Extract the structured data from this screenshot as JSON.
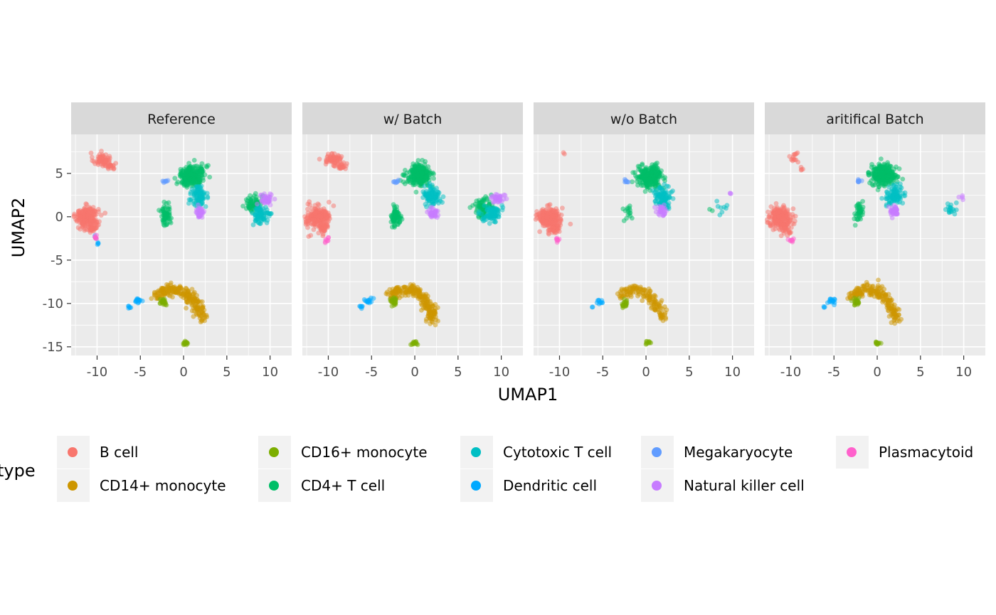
{
  "chart_data": {
    "type": "scatter",
    "xlabel": "UMAP1",
    "ylabel": "UMAP2",
    "xlim": [
      -13,
      12.5
    ],
    "ylim": [
      -16,
      9.5
    ],
    "x_ticks": [
      -10,
      -5,
      0,
      5,
      10
    ],
    "y_ticks": [
      -15,
      -10,
      -5,
      0,
      5
    ],
    "x_tick_labels": [
      "-10",
      "-5",
      "0",
      "5",
      "10"
    ],
    "y_tick_labels": [
      "-15",
      "-10",
      "-5",
      "0",
      "5"
    ],
    "grid": true,
    "legend_position": "bottom",
    "legend_title": "type",
    "facets": [
      "Reference",
      "w/ Batch",
      "w/o Batch",
      "aritifical Batch"
    ],
    "categories": [
      {
        "name": "B cell",
        "color": "#F8766D"
      },
      {
        "name": "CD14+ monocyte",
        "color": "#CD9600"
      },
      {
        "name": "CD16+ monocyte",
        "color": "#7CAE00"
      },
      {
        "name": "CD4+ T cell",
        "color": "#00BE67"
      },
      {
        "name": "Cytotoxic T cell",
        "color": "#00BFC4"
      },
      {
        "name": "Dendritic cell",
        "color": "#00A9FF"
      },
      {
        "name": "Megakaryocyte",
        "color": "#619CFF"
      },
      {
        "name": "Natural killer cell",
        "color": "#C77CFF"
      },
      {
        "name": "Plasmacytoid",
        "color": "#FF61CC"
      }
    ],
    "series": [
      {
        "name": "Reference",
        "clusters": [
          {
            "type": "B cell",
            "cx": -9.5,
            "cy": 6.6,
            "rx": 0.9,
            "ry": 0.7,
            "n": 60
          },
          {
            "type": "B cell",
            "cx": -8.4,
            "cy": 5.8,
            "rx": 0.5,
            "ry": 0.4,
            "n": 20
          },
          {
            "type": "B cell",
            "cx": -11.2,
            "cy": 0.0,
            "rx": 1.2,
            "ry": 1.0,
            "n": 220
          },
          {
            "type": "B cell",
            "cx": -10.6,
            "cy": -1.3,
            "rx": 0.6,
            "ry": 0.6,
            "n": 40
          },
          {
            "type": "Plasmacytoid",
            "cx": -10.2,
            "cy": -2.4,
            "rx": 0.3,
            "ry": 0.3,
            "n": 6
          },
          {
            "type": "Megakaryocyte",
            "cx": -10.3,
            "cy": -2.3,
            "rx": 0.2,
            "ry": 0.2,
            "n": 3
          },
          {
            "type": "Dendritic cell",
            "cx": -9.9,
            "cy": -3.1,
            "rx": 0.15,
            "ry": 0.2,
            "n": 4
          },
          {
            "type": "CD4+ T cell",
            "cx": 1.0,
            "cy": 4.8,
            "rx": 1.3,
            "ry": 1.1,
            "n": 250
          },
          {
            "type": "CD4+ T cell",
            "cx": -2.1,
            "cy": 0.1,
            "rx": 0.5,
            "ry": 1.0,
            "n": 70
          },
          {
            "type": "Megakaryocyte",
            "cx": -2.2,
            "cy": 4.1,
            "rx": 0.3,
            "ry": 0.15,
            "n": 8
          },
          {
            "type": "Cytotoxic T cell",
            "cx": 1.8,
            "cy": 2.4,
            "rx": 0.8,
            "ry": 1.0,
            "n": 90
          },
          {
            "type": "Natural killer cell",
            "cx": 1.9,
            "cy": 0.5,
            "rx": 0.4,
            "ry": 0.6,
            "n": 40
          },
          {
            "type": "CD4+ T cell",
            "cx": 8.0,
            "cy": 1.4,
            "rx": 0.9,
            "ry": 0.9,
            "n": 70
          },
          {
            "type": "Natural killer cell",
            "cx": 9.5,
            "cy": 2.0,
            "rx": 0.6,
            "ry": 0.6,
            "n": 40
          },
          {
            "type": "Cytotoxic T cell",
            "cx": 9.0,
            "cy": 0.3,
            "rx": 0.8,
            "ry": 0.9,
            "n": 80
          },
          {
            "type": "Dendritic cell",
            "cx": -5.3,
            "cy": -9.7,
            "rx": 0.5,
            "ry": 0.3,
            "n": 15
          },
          {
            "type": "Dendritic cell",
            "cx": -6.2,
            "cy": -10.4,
            "rx": 0.2,
            "ry": 0.15,
            "n": 6
          },
          {
            "type": "CD16+ monocyte",
            "cx": -2.4,
            "cy": -9.8,
            "rx": 0.3,
            "ry": 0.4,
            "n": 25
          },
          {
            "type": "CD16+ monocyte",
            "cx": 0.2,
            "cy": -14.6,
            "rx": 0.3,
            "ry": 0.2,
            "n": 15
          }
        ],
        "arc": {
          "type": "CD14+ monocyte",
          "points": [
            [
              -3.0,
              -9.2
            ],
            [
              -2.2,
              -8.5
            ],
            [
              -1.0,
              -8.3
            ],
            [
              0.3,
              -8.7
            ],
            [
              1.0,
              -9.6
            ],
            [
              1.6,
              -10.5
            ],
            [
              2.0,
              -11.4
            ],
            [
              2.1,
              -12.0
            ]
          ],
          "n": 230,
          "spread": 0.35
        }
      },
      {
        "name": "w/ Batch",
        "clusters": [
          {
            "type": "B cell",
            "cx": -9.5,
            "cy": 6.6,
            "rx": 0.9,
            "ry": 0.7,
            "n": 60
          },
          {
            "type": "B cell",
            "cx": -8.4,
            "cy": 5.8,
            "rx": 0.5,
            "ry": 0.4,
            "n": 20
          },
          {
            "type": "B cell",
            "cx": -11.2,
            "cy": 0.0,
            "rx": 1.2,
            "ry": 1.0,
            "n": 220
          },
          {
            "type": "B cell",
            "cx": -10.6,
            "cy": -1.3,
            "rx": 0.6,
            "ry": 0.6,
            "n": 40
          },
          {
            "type": "Plasmacytoid",
            "cx": -10.2,
            "cy": -2.6,
            "rx": 0.3,
            "ry": 0.4,
            "n": 8
          },
          {
            "type": "CD4+ T cell",
            "cx": 0.5,
            "cy": 4.8,
            "rx": 1.3,
            "ry": 1.1,
            "n": 250
          },
          {
            "type": "CD4+ T cell",
            "cx": -2.1,
            "cy": 0.0,
            "rx": 0.5,
            "ry": 1.0,
            "n": 70
          },
          {
            "type": "Megakaryocyte",
            "cx": -2.2,
            "cy": 4.1,
            "rx": 0.3,
            "ry": 0.15,
            "n": 8
          },
          {
            "type": "Cytotoxic T cell",
            "cx": 2.0,
            "cy": 2.5,
            "rx": 0.9,
            "ry": 1.0,
            "n": 100
          },
          {
            "type": "Natural killer cell",
            "cx": 2.0,
            "cy": 0.4,
            "rx": 0.5,
            "ry": 0.6,
            "n": 40
          },
          {
            "type": "CD4+ T cell",
            "cx": 7.8,
            "cy": 1.0,
            "rx": 1.0,
            "ry": 1.0,
            "n": 80
          },
          {
            "type": "Natural killer cell",
            "cx": 9.6,
            "cy": 2.2,
            "rx": 0.7,
            "ry": 0.5,
            "n": 40
          },
          {
            "type": "Cytotoxic T cell",
            "cx": 9.0,
            "cy": 0.3,
            "rx": 0.9,
            "ry": 0.9,
            "n": 80
          },
          {
            "type": "Dendritic cell",
            "cx": -5.3,
            "cy": -9.7,
            "rx": 0.5,
            "ry": 0.3,
            "n": 15
          },
          {
            "type": "Dendritic cell",
            "cx": -6.2,
            "cy": -10.4,
            "rx": 0.2,
            "ry": 0.15,
            "n": 6
          },
          {
            "type": "CD16+ monocyte",
            "cx": -2.4,
            "cy": -9.8,
            "rx": 0.3,
            "ry": 0.4,
            "n": 25
          },
          {
            "type": "CD16+ monocyte",
            "cx": 0.0,
            "cy": -14.6,
            "rx": 0.4,
            "ry": 0.2,
            "n": 15
          }
        ],
        "arc": {
          "type": "CD14+ monocyte",
          "points": [
            [
              -3.0,
              -9.2
            ],
            [
              -2.2,
              -8.5
            ],
            [
              -1.0,
              -8.3
            ],
            [
              0.3,
              -8.7
            ],
            [
              1.0,
              -9.6
            ],
            [
              1.6,
              -10.5
            ],
            [
              2.0,
              -11.4
            ],
            [
              2.1,
              -12.0
            ]
          ],
          "n": 230,
          "spread": 0.35
        }
      },
      {
        "name": "w/o Batch",
        "clusters": [
          {
            "type": "B cell",
            "cx": -9.5,
            "cy": 7.3,
            "rx": 0.15,
            "ry": 0.15,
            "n": 2
          },
          {
            "type": "B cell",
            "cx": -11.2,
            "cy": -0.1,
            "rx": 1.2,
            "ry": 1.0,
            "n": 220
          },
          {
            "type": "B cell",
            "cx": -10.6,
            "cy": -1.4,
            "rx": 0.6,
            "ry": 0.6,
            "n": 40
          },
          {
            "type": "Plasmacytoid",
            "cx": -10.3,
            "cy": -2.6,
            "rx": 0.3,
            "ry": 0.4,
            "n": 8
          },
          {
            "type": "CD4+ T cell",
            "cx": 0.5,
            "cy": 4.6,
            "rx": 1.3,
            "ry": 1.1,
            "n": 250
          },
          {
            "type": "CD4+ T cell",
            "cx": -2.1,
            "cy": 0.6,
            "rx": 0.6,
            "ry": 0.9,
            "n": 15
          },
          {
            "type": "Megakaryocyte",
            "cx": -2.4,
            "cy": 4.1,
            "rx": 0.3,
            "ry": 0.15,
            "n": 8
          },
          {
            "type": "Cytotoxic T cell",
            "cx": 2.0,
            "cy": 2.3,
            "rx": 0.9,
            "ry": 1.0,
            "n": 100
          },
          {
            "type": "Natural killer cell",
            "cx": 1.8,
            "cy": 0.8,
            "rx": 0.5,
            "ry": 0.6,
            "n": 30
          },
          {
            "type": "CD4+ T cell",
            "cx": 7.6,
            "cy": 0.8,
            "rx": 0.3,
            "ry": 0.2,
            "n": 2
          },
          {
            "type": "Cytotoxic T cell",
            "cx": 8.7,
            "cy": 1.0,
            "rx": 0.6,
            "ry": 0.8,
            "n": 8
          },
          {
            "type": "Natural killer cell",
            "cx": 9.8,
            "cy": 2.6,
            "rx": 0.15,
            "ry": 0.15,
            "n": 3
          },
          {
            "type": "Dendritic cell",
            "cx": -5.4,
            "cy": -9.8,
            "rx": 0.4,
            "ry": 0.3,
            "n": 10
          },
          {
            "type": "Dendritic cell",
            "cx": -6.2,
            "cy": -10.4,
            "rx": 0.15,
            "ry": 0.1,
            "n": 2
          },
          {
            "type": "CD16+ monocyte",
            "cx": -2.5,
            "cy": -10.0,
            "rx": 0.3,
            "ry": 0.4,
            "n": 20
          },
          {
            "type": "CD16+ monocyte",
            "cx": 0.3,
            "cy": -14.5,
            "rx": 0.3,
            "ry": 0.2,
            "n": 10
          }
        ],
        "arc": {
          "type": "CD14+ monocyte",
          "points": [
            [
              -3.0,
              -9.2
            ],
            [
              -2.2,
              -8.6
            ],
            [
              -1.0,
              -8.4
            ],
            [
              0.0,
              -8.7
            ],
            [
              0.8,
              -9.6
            ],
            [
              1.4,
              -10.5
            ],
            [
              1.8,
              -11.3
            ],
            [
              2.0,
              -11.8
            ]
          ],
          "n": 140,
          "spread": 0.3
        }
      },
      {
        "name": "aritifical Batch",
        "clusters": [
          {
            "type": "B cell",
            "cx": -9.6,
            "cy": 6.8,
            "rx": 0.6,
            "ry": 0.6,
            "n": 14
          },
          {
            "type": "B cell",
            "cx": -8.8,
            "cy": 5.6,
            "rx": 0.3,
            "ry": 0.3,
            "n": 4
          },
          {
            "type": "B cell",
            "cx": -11.2,
            "cy": 0.0,
            "rx": 1.2,
            "ry": 1.0,
            "n": 220
          },
          {
            "type": "B cell",
            "cx": -10.6,
            "cy": -1.3,
            "rx": 0.6,
            "ry": 0.6,
            "n": 40
          },
          {
            "type": "Plasmacytoid",
            "cx": -10.0,
            "cy": -2.8,
            "rx": 0.3,
            "ry": 0.3,
            "n": 8
          },
          {
            "type": "CD4+ T cell",
            "cx": 0.7,
            "cy": 4.8,
            "rx": 1.3,
            "ry": 1.1,
            "n": 250
          },
          {
            "type": "CD4+ T cell",
            "cx": -2.0,
            "cy": 0.5,
            "rx": 0.5,
            "ry": 1.0,
            "n": 40
          },
          {
            "type": "Megakaryocyte",
            "cx": -2.2,
            "cy": 4.1,
            "rx": 0.3,
            "ry": 0.15,
            "n": 8
          },
          {
            "type": "Cytotoxic T cell",
            "cx": 2.0,
            "cy": 2.5,
            "rx": 0.9,
            "ry": 1.0,
            "n": 100
          },
          {
            "type": "Natural killer cell",
            "cx": 1.9,
            "cy": 0.7,
            "rx": 0.5,
            "ry": 0.6,
            "n": 35
          },
          {
            "type": "Cytotoxic T cell",
            "cx": 8.5,
            "cy": 1.0,
            "rx": 0.7,
            "ry": 0.7,
            "n": 18
          },
          {
            "type": "Natural killer cell",
            "cx": 9.6,
            "cy": 2.3,
            "rx": 0.3,
            "ry": 0.3,
            "n": 4
          },
          {
            "type": "Dendritic cell",
            "cx": -5.3,
            "cy": -9.7,
            "rx": 0.5,
            "ry": 0.3,
            "n": 15
          },
          {
            "type": "Dendritic cell",
            "cx": -6.2,
            "cy": -10.4,
            "rx": 0.15,
            "ry": 0.1,
            "n": 3
          },
          {
            "type": "CD16+ monocyte",
            "cx": -2.4,
            "cy": -9.8,
            "rx": 0.3,
            "ry": 0.4,
            "n": 25
          },
          {
            "type": "CD16+ monocyte",
            "cx": 0.0,
            "cy": -14.6,
            "rx": 0.3,
            "ry": 0.2,
            "n": 12
          }
        ],
        "arc": {
          "type": "CD14+ monocyte",
          "points": [
            [
              -3.0,
              -9.2
            ],
            [
              -2.2,
              -8.5
            ],
            [
              -1.0,
              -8.3
            ],
            [
              0.3,
              -8.7
            ],
            [
              1.0,
              -9.6
            ],
            [
              1.6,
              -10.5
            ],
            [
              2.0,
              -11.4
            ],
            [
              2.1,
              -12.0
            ]
          ],
          "n": 190,
          "spread": 0.33
        }
      }
    ]
  }
}
